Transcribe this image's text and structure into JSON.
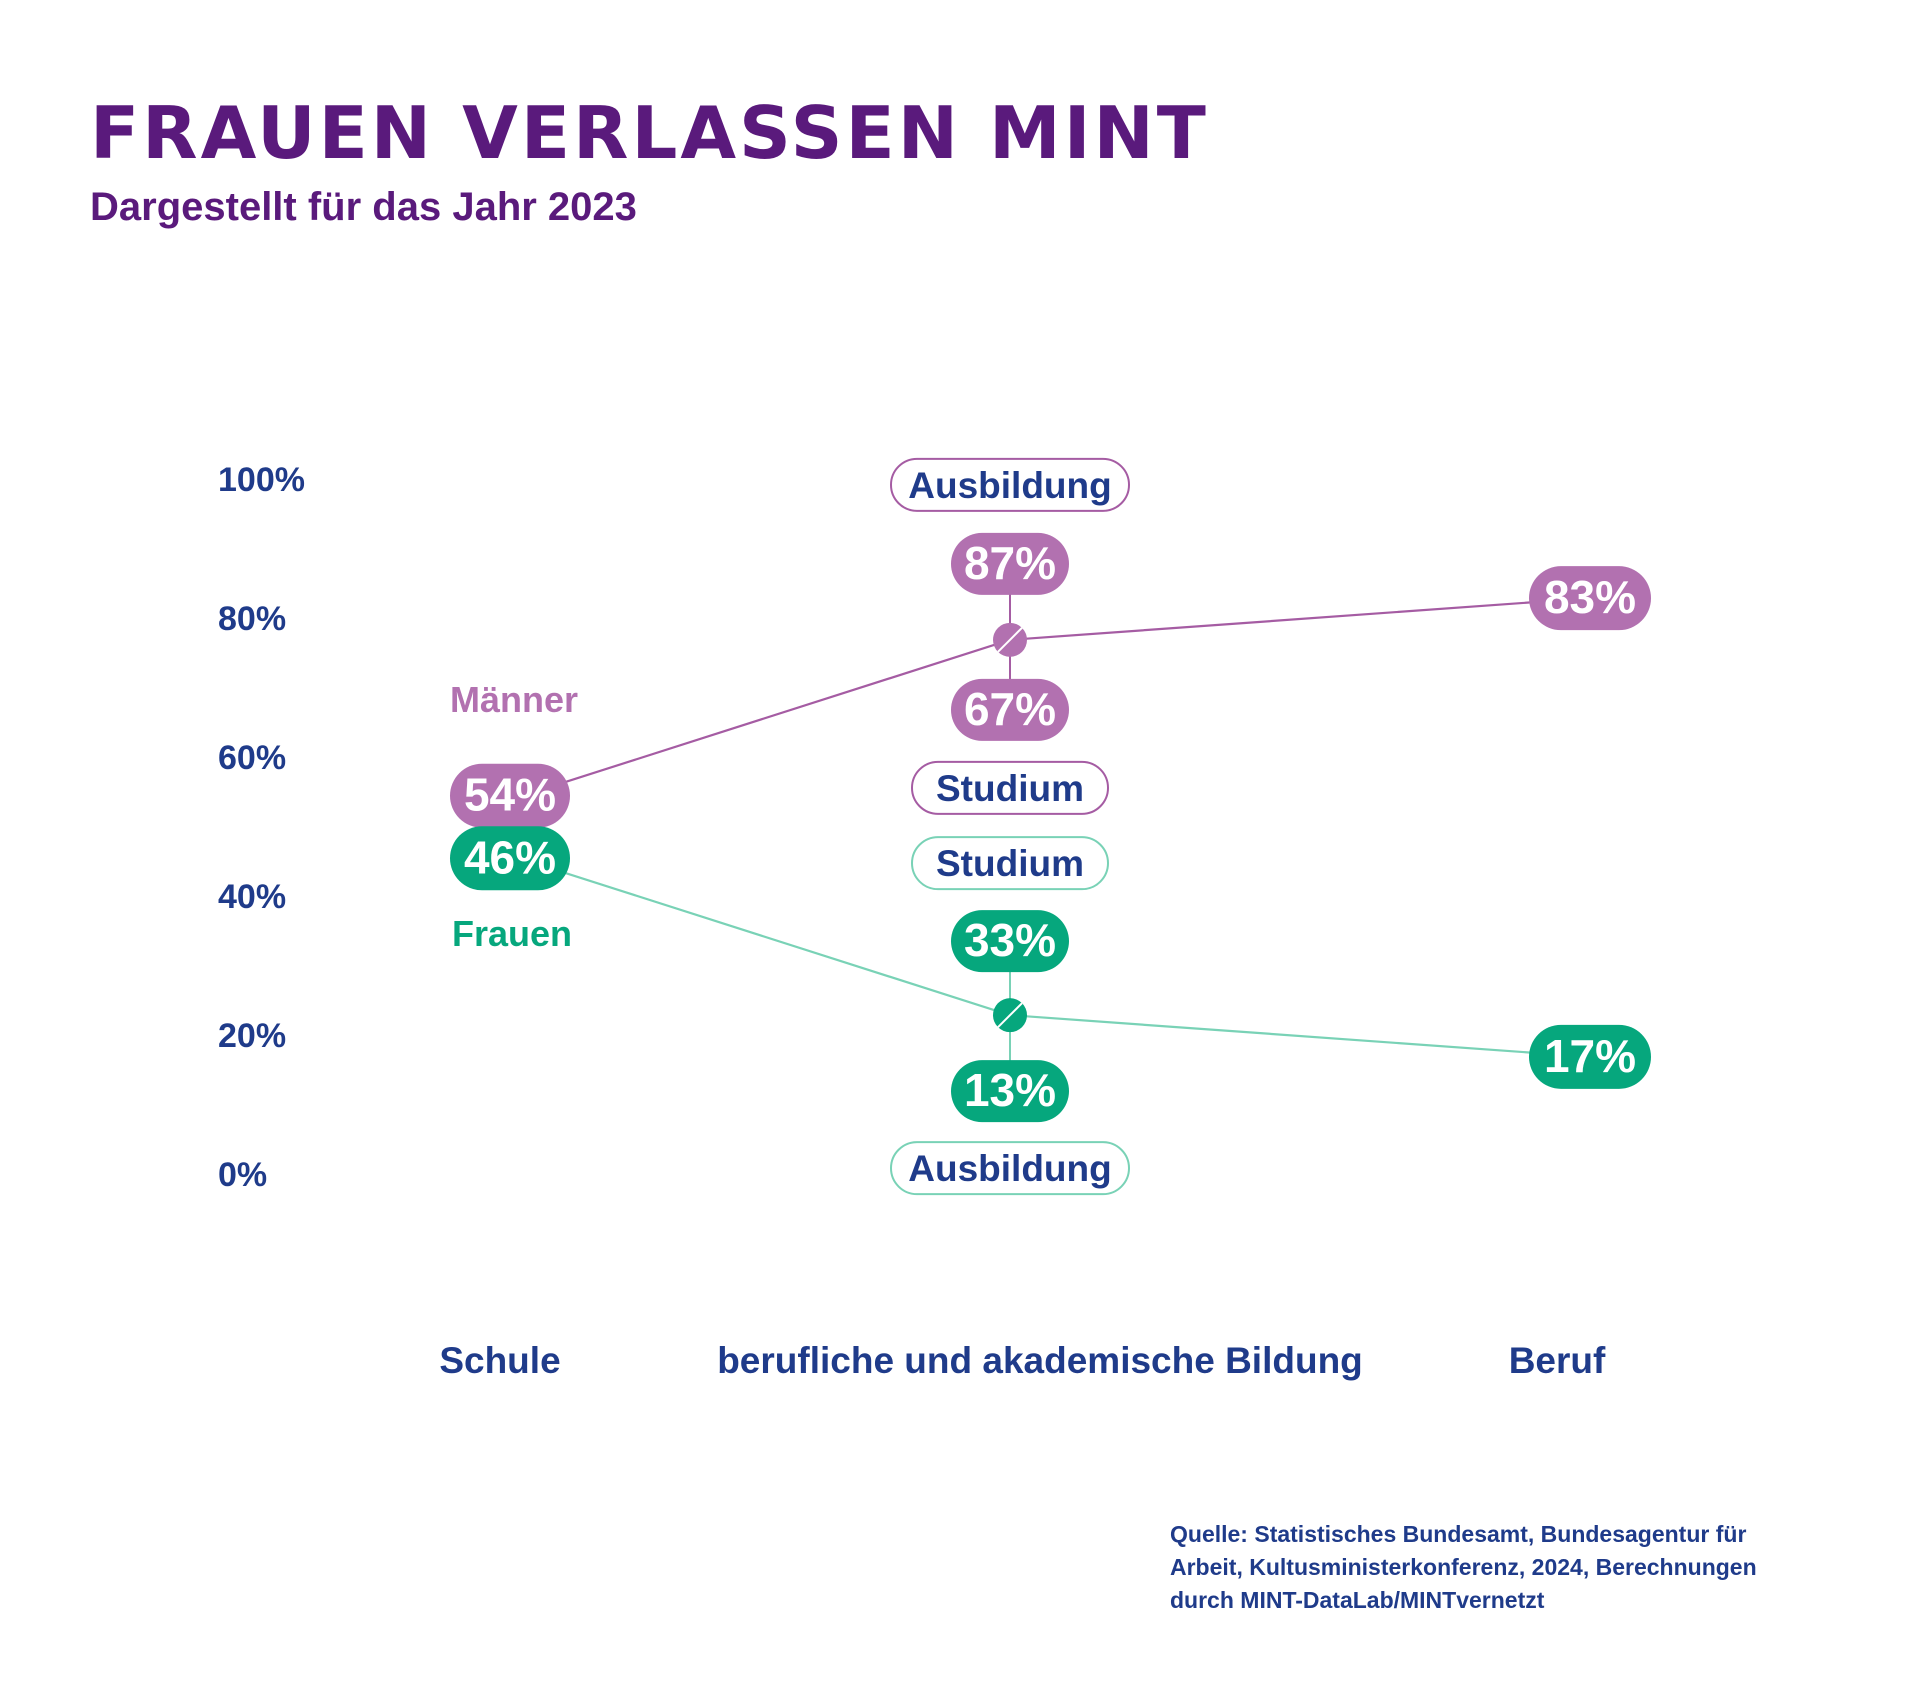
{
  "colors": {
    "title": "#5a1a7c",
    "axis_text": "#1f3b8a",
    "men": "#b271b0",
    "men_line": "#a55ca3",
    "women": "#06a77d",
    "women_line": "#79d2b6",
    "white": "#ffffff"
  },
  "chart_data": {
    "type": "line",
    "title": "FRAUEN VERLASSEN MINT",
    "subtitle": "Dargestellt für das Jahr 2023",
    "categories": [
      "Schule",
      "berufliche und akademische Bildung",
      "Beruf"
    ],
    "ylim": [
      0,
      100
    ],
    "yticks": [
      "100%",
      "80%",
      "60%",
      "40%",
      "20%",
      "0%"
    ],
    "ytick_values": [
      100,
      80,
      60,
      40,
      20,
      0
    ],
    "grid": false,
    "series": [
      {
        "name": "Männer",
        "values": [
          54,
          77,
          83
        ],
        "labels": [
          "54%",
          "",
          "83%"
        ],
        "middle": {
          "upper_value_label": "87%",
          "upper_category": "Ausbildung",
          "lower_value_label": "67%",
          "lower_category": "Studium"
        }
      },
      {
        "name": "Frauen",
        "values": [
          46,
          23,
          17
        ],
        "labels": [
          "46%",
          "",
          "17%"
        ],
        "middle": {
          "upper_value_label": "33%",
          "upper_category": "Studium",
          "lower_value_label": "13%",
          "lower_category": "Ausbildung"
        }
      }
    ]
  },
  "source": {
    "lines": [
      "Quelle: Statistisches Bundesamt, Bundesagentur für",
      "Arbeit, Kultusministerkonferenz, 2024, Berechnungen",
      "durch MINT-DataLab/MINTvernetzt"
    ]
  }
}
